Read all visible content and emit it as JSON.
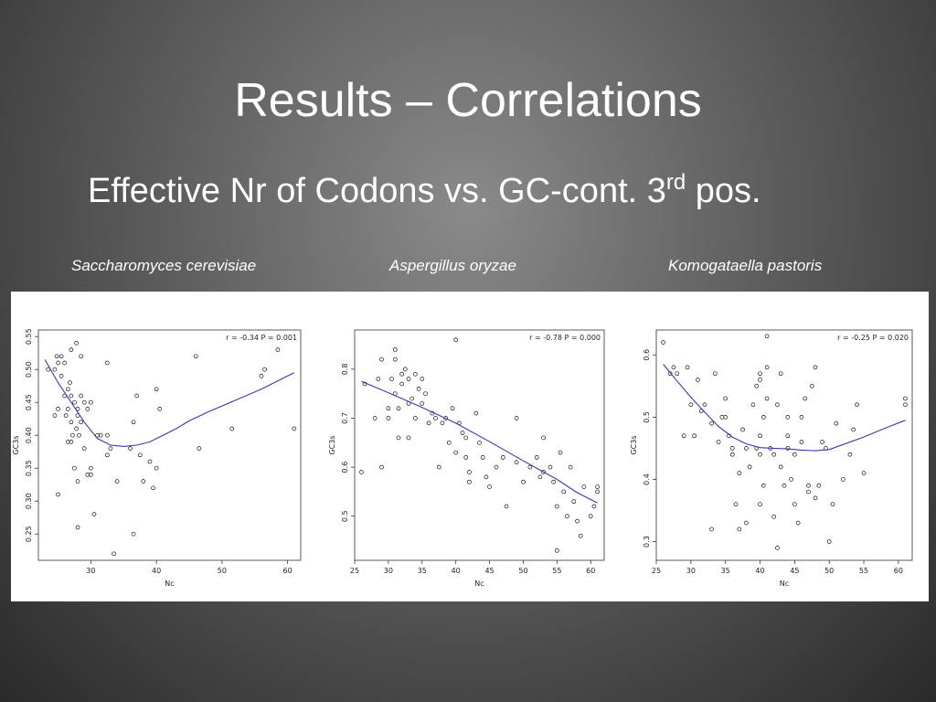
{
  "slide": {
    "title": "Results – Correlations",
    "subtitle_main": "Effective Nr of Codons vs. GC-cont. 3",
    "subtitle_sup": "rd",
    "subtitle_end": " pos."
  },
  "chart_data": [
    {
      "type": "scatter",
      "species": "Saccharomyces cerevisiae",
      "annotation": "r = -0.34   P = 0.001",
      "xlabel": "Nc",
      "ylabel": "GC3s",
      "xlim": [
        22,
        62
      ],
      "ylim": [
        0.21,
        0.56
      ],
      "xticks": [
        30,
        40,
        50,
        60
      ],
      "yticks": [
        0.25,
        0.3,
        0.35,
        0.4,
        0.45,
        0.5,
        0.55
      ],
      "points": [
        [
          23.5,
          0.5
        ],
        [
          24.5,
          0.5
        ],
        [
          25,
          0.51
        ],
        [
          24.8,
          0.52
        ],
        [
          25.5,
          0.52
        ],
        [
          26,
          0.51
        ],
        [
          24.5,
          0.43
        ],
        [
          25,
          0.44
        ],
        [
          25,
          0.31
        ],
        [
          25.5,
          0.49
        ],
        [
          26,
          0.46
        ],
        [
          26.5,
          0.47
        ],
        [
          26.2,
          0.43
        ],
        [
          26.5,
          0.44
        ],
        [
          26.8,
          0.48
        ],
        [
          27,
          0.46
        ],
        [
          27,
          0.42
        ],
        [
          27.2,
          0.4
        ],
        [
          27,
          0.39
        ],
        [
          27.5,
          0.45
        ],
        [
          28,
          0.44
        ],
        [
          28,
          0.43
        ],
        [
          27.8,
          0.41
        ],
        [
          28.2,
          0.4
        ],
        [
          28.5,
          0.42
        ],
        [
          28.5,
          0.46
        ],
        [
          29,
          0.45
        ],
        [
          29,
          0.38
        ],
        [
          29.5,
          0.44
        ],
        [
          30,
          0.45
        ],
        [
          26.5,
          0.39
        ],
        [
          27.5,
          0.35
        ],
        [
          28,
          0.33
        ],
        [
          27.8,
          0.54
        ],
        [
          27,
          0.53
        ],
        [
          28.5,
          0.52
        ],
        [
          29.5,
          0.34
        ],
        [
          30,
          0.35
        ],
        [
          30,
          0.34
        ],
        [
          28,
          0.26
        ],
        [
          30.5,
          0.28
        ],
        [
          31,
          0.4
        ],
        [
          31.5,
          0.4
        ],
        [
          32.5,
          0.4
        ],
        [
          32.5,
          0.37
        ],
        [
          33,
          0.38
        ],
        [
          32.5,
          0.51
        ],
        [
          33.5,
          0.22
        ],
        [
          34,
          0.33
        ],
        [
          36,
          0.38
        ],
        [
          36.5,
          0.42
        ],
        [
          36.5,
          0.25
        ],
        [
          37,
          0.46
        ],
        [
          37.5,
          0.37
        ],
        [
          38,
          0.33
        ],
        [
          39,
          0.36
        ],
        [
          39.5,
          0.32
        ],
        [
          40,
          0.35
        ],
        [
          40,
          0.47
        ],
        [
          40.5,
          0.44
        ],
        [
          46,
          0.52
        ],
        [
          46.5,
          0.38
        ],
        [
          51.5,
          0.41
        ],
        [
          56,
          0.49
        ],
        [
          56.5,
          0.5
        ],
        [
          58.5,
          0.53
        ],
        [
          61,
          0.41
        ]
      ],
      "trend": [
        [
          23,
          0.515
        ],
        [
          25,
          0.48
        ],
        [
          27,
          0.45
        ],
        [
          29,
          0.42
        ],
        [
          31,
          0.395
        ],
        [
          33,
          0.385
        ],
        [
          35,
          0.383
        ],
        [
          37,
          0.385
        ],
        [
          39,
          0.39
        ],
        [
          41,
          0.4
        ],
        [
          43,
          0.41
        ],
        [
          45,
          0.422
        ],
        [
          48,
          0.436
        ],
        [
          52,
          0.453
        ],
        [
          56,
          0.47
        ],
        [
          61,
          0.495
        ]
      ]
    },
    {
      "type": "scatter",
      "species": "Aspergillus oryzae",
      "annotation": "r = -0.78   P = 0.000",
      "xlabel": "Nc",
      "ylabel": "GC3s",
      "xlim": [
        25,
        62
      ],
      "ylim": [
        0.41,
        0.88
      ],
      "xticks": [
        25,
        30,
        35,
        40,
        45,
        50,
        55,
        60
      ],
      "yticks": [
        0.5,
        0.6,
        0.7,
        0.8
      ],
      "points": [
        [
          26,
          0.59
        ],
        [
          26.5,
          0.77
        ],
        [
          28,
          0.7
        ],
        [
          28.5,
          0.78
        ],
        [
          29,
          0.82
        ],
        [
          29,
          0.6
        ],
        [
          30,
          0.72
        ],
        [
          30,
          0.7
        ],
        [
          30.5,
          0.78
        ],
        [
          31,
          0.84
        ],
        [
          31,
          0.82
        ],
        [
          31,
          0.75
        ],
        [
          31.5,
          0.72
        ],
        [
          31.5,
          0.66
        ],
        [
          32,
          0.79
        ],
        [
          32,
          0.77
        ],
        [
          32.5,
          0.8
        ],
        [
          33,
          0.78
        ],
        [
          33,
          0.73
        ],
        [
          33,
          0.66
        ],
        [
          33.5,
          0.74
        ],
        [
          34,
          0.79
        ],
        [
          34,
          0.7
        ],
        [
          34.5,
          0.76
        ],
        [
          35,
          0.78
        ],
        [
          35,
          0.73
        ],
        [
          35.5,
          0.75
        ],
        [
          36,
          0.69
        ],
        [
          36.5,
          0.71
        ],
        [
          37,
          0.7
        ],
        [
          37.5,
          0.6
        ],
        [
          38,
          0.69
        ],
        [
          38.5,
          0.7
        ],
        [
          39,
          0.65
        ],
        [
          39.5,
          0.72
        ],
        [
          40,
          0.86
        ],
        [
          40,
          0.63
        ],
        [
          40.5,
          0.69
        ],
        [
          41,
          0.67
        ],
        [
          41.5,
          0.66
        ],
        [
          41.5,
          0.62
        ],
        [
          42,
          0.59
        ],
        [
          42,
          0.57
        ],
        [
          43,
          0.71
        ],
        [
          43.5,
          0.65
        ],
        [
          44,
          0.62
        ],
        [
          44.5,
          0.58
        ],
        [
          45,
          0.56
        ],
        [
          46,
          0.6
        ],
        [
          47,
          0.62
        ],
        [
          47.5,
          0.52
        ],
        [
          49,
          0.7
        ],
        [
          49,
          0.61
        ],
        [
          50,
          0.57
        ],
        [
          51,
          0.6
        ],
        [
          52,
          0.62
        ],
        [
          52.5,
          0.58
        ],
        [
          53,
          0.66
        ],
        [
          53,
          0.59
        ],
        [
          54,
          0.6
        ],
        [
          54.5,
          0.57
        ],
        [
          55,
          0.52
        ],
        [
          55,
          0.43
        ],
        [
          55.5,
          0.63
        ],
        [
          56,
          0.55
        ],
        [
          56.5,
          0.5
        ],
        [
          57,
          0.6
        ],
        [
          57.5,
          0.53
        ],
        [
          58,
          0.49
        ],
        [
          58.5,
          0.46
        ],
        [
          59,
          0.56
        ],
        [
          60,
          0.5
        ],
        [
          60.5,
          0.52
        ],
        [
          61,
          0.55
        ],
        [
          61,
          0.56
        ]
      ],
      "trend": [
        [
          26,
          0.775
        ],
        [
          30,
          0.752
        ],
        [
          35,
          0.722
        ],
        [
          40,
          0.69
        ],
        [
          45,
          0.652
        ],
        [
          50,
          0.613
        ],
        [
          55,
          0.575
        ],
        [
          58,
          0.548
        ],
        [
          61,
          0.527
        ]
      ]
    },
    {
      "type": "scatter",
      "species": "Komogataella pastoris",
      "annotation": "r = -0.25   P = 0.020",
      "xlabel": "Nc",
      "ylabel": "GC3s",
      "xlim": [
        25,
        62
      ],
      "ylim": [
        0.27,
        0.64
      ],
      "xticks": [
        25,
        30,
        35,
        40,
        45,
        50,
        55,
        60
      ],
      "yticks": [
        0.3,
        0.4,
        0.5,
        0.6
      ],
      "points": [
        [
          26,
          0.62
        ],
        [
          27,
          0.57
        ],
        [
          27.5,
          0.58
        ],
        [
          28,
          0.57
        ],
        [
          29,
          0.47
        ],
        [
          29.5,
          0.58
        ],
        [
          30,
          0.52
        ],
        [
          30.5,
          0.47
        ],
        [
          31,
          0.56
        ],
        [
          31.5,
          0.51
        ],
        [
          32,
          0.52
        ],
        [
          33,
          0.49
        ],
        [
          33,
          0.32
        ],
        [
          33.5,
          0.57
        ],
        [
          34,
          0.46
        ],
        [
          34.5,
          0.5
        ],
        [
          35,
          0.53
        ],
        [
          35,
          0.5
        ],
        [
          35.5,
          0.47
        ],
        [
          36,
          0.44
        ],
        [
          36,
          0.45
        ],
        [
          36.5,
          0.36
        ],
        [
          37,
          0.41
        ],
        [
          37,
          0.32
        ],
        [
          37.5,
          0.48
        ],
        [
          38,
          0.45
        ],
        [
          38,
          0.33
        ],
        [
          38.5,
          0.42
        ],
        [
          39,
          0.52
        ],
        [
          39.5,
          0.55
        ],
        [
          39.5,
          0.45
        ],
        [
          40,
          0.57
        ],
        [
          40,
          0.56
        ],
        [
          40,
          0.47
        ],
        [
          40,
          0.44
        ],
        [
          40,
          0.36
        ],
        [
          40.5,
          0.5
        ],
        [
          40.5,
          0.39
        ],
        [
          41,
          0.63
        ],
        [
          41,
          0.58
        ],
        [
          41,
          0.53
        ],
        [
          41.5,
          0.45
        ],
        [
          42,
          0.34
        ],
        [
          42,
          0.44
        ],
        [
          42.5,
          0.52
        ],
        [
          42.5,
          0.29
        ],
        [
          43,
          0.57
        ],
        [
          43,
          0.42
        ],
        [
          43.5,
          0.39
        ],
        [
          44,
          0.47
        ],
        [
          44,
          0.5
        ],
        [
          44,
          0.45
        ],
        [
          44.5,
          0.4
        ],
        [
          45,
          0.36
        ],
        [
          45,
          0.44
        ],
        [
          45.5,
          0.33
        ],
        [
          46,
          0.5
        ],
        [
          46,
          0.46
        ],
        [
          46.5,
          0.53
        ],
        [
          47,
          0.38
        ],
        [
          47,
          0.39
        ],
        [
          47.5,
          0.55
        ],
        [
          48,
          0.58
        ],
        [
          48,
          0.37
        ],
        [
          48.5,
          0.39
        ],
        [
          49,
          0.46
        ],
        [
          49.5,
          0.45
        ],
        [
          50,
          0.3
        ],
        [
          50.5,
          0.36
        ],
        [
          51,
          0.49
        ],
        [
          52,
          0.4
        ],
        [
          53,
          0.44
        ],
        [
          53.5,
          0.48
        ],
        [
          54,
          0.52
        ],
        [
          55,
          0.41
        ],
        [
          61,
          0.53
        ],
        [
          61,
          0.52
        ]
      ],
      "trend": [
        [
          26,
          0.585
        ],
        [
          28,
          0.558
        ],
        [
          30,
          0.532
        ],
        [
          32,
          0.508
        ],
        [
          34,
          0.485
        ],
        [
          36,
          0.468
        ],
        [
          38,
          0.457
        ],
        [
          40,
          0.451
        ],
        [
          42,
          0.45
        ],
        [
          44,
          0.449
        ],
        [
          46,
          0.447
        ],
        [
          48,
          0.446
        ],
        [
          50,
          0.448
        ],
        [
          52,
          0.456
        ],
        [
          55,
          0.468
        ],
        [
          58,
          0.482
        ],
        [
          61,
          0.495
        ]
      ]
    }
  ]
}
